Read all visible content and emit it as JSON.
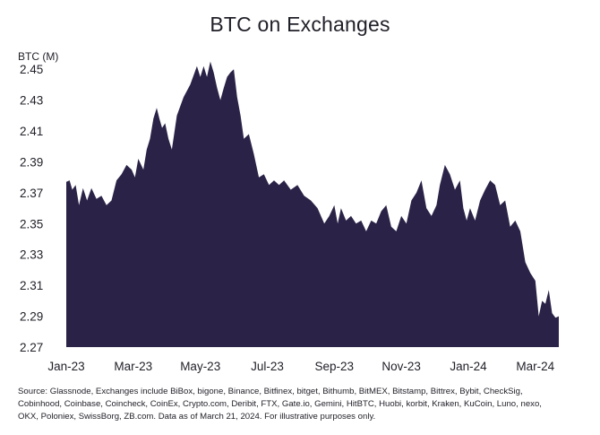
{
  "chart_data": {
    "type": "area",
    "title": "BTC on Exchanges",
    "ylabel": "BTC (M)",
    "xlabel": "",
    "ylim": [
      2.27,
      2.46
    ],
    "y_ticks": [
      "2.27",
      "2.29",
      "2.31",
      "2.33",
      "2.35",
      "2.37",
      "2.39",
      "2.41",
      "2.43",
      "2.45"
    ],
    "x_ticks": [
      "Jan-23",
      "Mar-23",
      "May-23",
      "Jul-23",
      "Sep-23",
      "Nov-23",
      "Jan-24",
      "Mar-24"
    ],
    "x_tick_positions": [
      0,
      2,
      4,
      6,
      8,
      10,
      12,
      14
    ],
    "x_range": [
      0,
      14.7
    ],
    "color": "#2b2347",
    "series": [
      {
        "name": "BTC on Exchanges",
        "x": [
          0.0,
          0.1,
          0.18,
          0.28,
          0.38,
          0.5,
          0.62,
          0.75,
          0.9,
          1.05,
          1.2,
          1.35,
          1.5,
          1.65,
          1.8,
          1.95,
          2.05,
          2.15,
          2.3,
          2.4,
          2.5,
          2.6,
          2.7,
          2.78,
          2.86,
          2.95,
          3.05,
          3.15,
          3.3,
          3.5,
          3.7,
          3.9,
          4.0,
          4.1,
          4.2,
          4.3,
          4.4,
          4.5,
          4.6,
          4.7,
          4.8,
          4.9,
          5.0,
          5.1,
          5.2,
          5.3,
          5.45,
          5.6,
          5.75,
          5.9,
          6.05,
          6.2,
          6.35,
          6.5,
          6.7,
          6.9,
          7.1,
          7.3,
          7.5,
          7.7,
          7.85,
          8.0,
          8.1,
          8.2,
          8.35,
          8.5,
          8.65,
          8.8,
          8.95,
          9.1,
          9.25,
          9.4,
          9.55,
          9.7,
          9.85,
          10.0,
          10.15,
          10.3,
          10.45,
          10.6,
          10.75,
          10.9,
          11.05,
          11.15,
          11.3,
          11.45,
          11.6,
          11.75,
          11.85,
          11.95,
          12.05,
          12.2,
          12.35,
          12.5,
          12.65,
          12.8,
          12.95,
          13.1,
          13.25,
          13.4,
          13.55,
          13.7,
          13.85,
          14.0,
          14.1,
          14.2,
          14.3,
          14.4,
          14.5,
          14.6,
          14.7
        ],
        "values": [
          2.377,
          2.378,
          2.372,
          2.375,
          2.362,
          2.373,
          2.365,
          2.373,
          2.366,
          2.368,
          2.362,
          2.365,
          2.378,
          2.382,
          2.388,
          2.385,
          2.38,
          2.392,
          2.385,
          2.398,
          2.405,
          2.418,
          2.425,
          2.418,
          2.412,
          2.415,
          2.405,
          2.398,
          2.42,
          2.432,
          2.44,
          2.452,
          2.445,
          2.452,
          2.445,
          2.455,
          2.448,
          2.438,
          2.43,
          2.438,
          2.445,
          2.448,
          2.45,
          2.432,
          2.42,
          2.405,
          2.408,
          2.395,
          2.38,
          2.382,
          2.375,
          2.378,
          2.375,
          2.378,
          2.372,
          2.375,
          2.368,
          2.365,
          2.36,
          2.35,
          2.355,
          2.362,
          2.35,
          2.36,
          2.352,
          2.355,
          2.35,
          2.352,
          2.345,
          2.352,
          2.35,
          2.358,
          2.362,
          2.348,
          2.345,
          2.355,
          2.35,
          2.365,
          2.37,
          2.378,
          2.36,
          2.355,
          2.362,
          2.375,
          2.388,
          2.382,
          2.372,
          2.378,
          2.36,
          2.352,
          2.36,
          2.352,
          2.365,
          2.372,
          2.378,
          2.375,
          2.362,
          2.365,
          2.348,
          2.352,
          2.345,
          2.325,
          2.318,
          2.313,
          2.29,
          2.3,
          2.298,
          2.307,
          2.292,
          2.289,
          2.29
        ]
      }
    ]
  },
  "source_note": "Source: Glassnode, Exchanges include BiBox, bigone, Binance, Bitfinex, bitget, Bithumb, BitMEX, Bitstamp, Bittrex, Bybit, CheckSig, Cobinhood, Coinbase, Coincheck, CoinEx, Crypto.com, Deribit, FTX, Gate.io, Gemini, HitBTC, Huobi, korbit, Kraken, KuCoin, Luno, nexo, OKX, Poloniex, SwissBorg, ZB.com. Data as of March 21, 2024. For illustrative purposes only."
}
